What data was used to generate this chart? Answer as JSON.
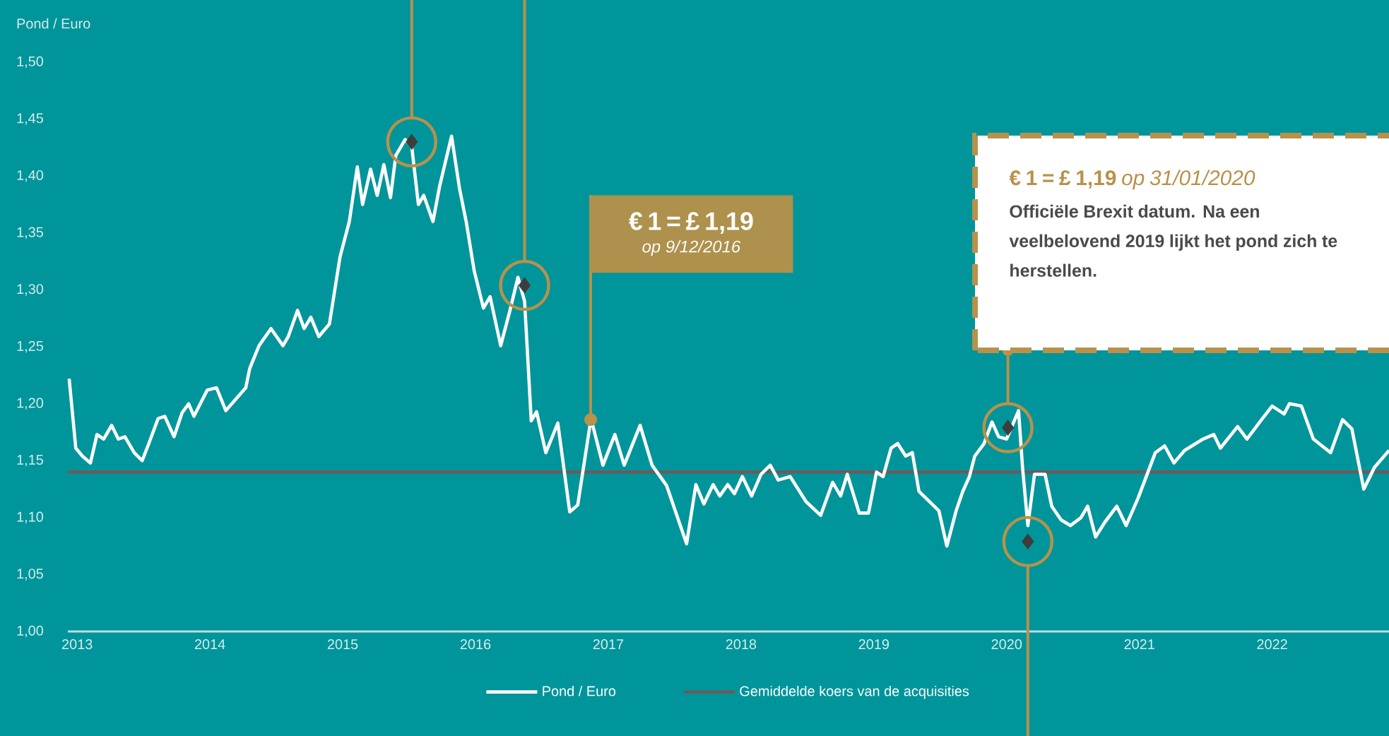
{
  "chart_data": {
    "type": "line",
    "ylabel": "Pond / Euro",
    "xlim": [
      2012.93,
      2022.88
    ],
    "xticks": [
      2013,
      2014,
      2015,
      2016,
      2017,
      2018,
      2019,
      2020,
      2021,
      2022
    ],
    "ylim": [
      1.0,
      1.5
    ],
    "yticks": [
      {
        "value": 1.0,
        "label": "1,00"
      },
      {
        "value": 1.05,
        "label": "1,05"
      },
      {
        "value": 1.1,
        "label": "1,10"
      },
      {
        "value": 1.15,
        "label": "1,15"
      },
      {
        "value": 1.2,
        "label": "1,20"
      },
      {
        "value": 1.25,
        "label": "1,25"
      },
      {
        "value": 1.3,
        "label": "1,30"
      },
      {
        "value": 1.35,
        "label": "1,35"
      },
      {
        "value": 1.4,
        "label": "1,40"
      },
      {
        "value": 1.45,
        "label": "1,45"
      },
      {
        "value": 1.5,
        "label": "1,50"
      }
    ],
    "series": [
      {
        "name": "Pond / Euro",
        "color": "#ffffff",
        "x": [
          2012.94,
          2012.99,
          2013.04,
          2013.1,
          2013.15,
          2013.2,
          2013.26,
          2013.31,
          2013.36,
          2013.43,
          2013.49,
          2013.54,
          2013.61,
          2013.66,
          2013.73,
          2013.79,
          2013.84,
          2013.88,
          2013.98,
          2014.05,
          2014.12,
          2014.27,
          2014.3,
          2014.37,
          2014.46,
          2014.55,
          2014.59,
          2014.66,
          2014.71,
          2014.76,
          2014.82,
          2014.9,
          2014.98,
          2015.05,
          2015.11,
          2015.15,
          2015.21,
          2015.26,
          2015.31,
          2015.36,
          2015.4,
          2015.47,
          2015.52,
          2015.57,
          2015.61,
          2015.68,
          2015.73,
          2015.82,
          2015.88,
          2015.93,
          2015.99,
          2016.06,
          2016.11,
          2016.19,
          2016.26,
          2016.32,
          2016.37,
          2016.42,
          2016.46,
          2016.53,
          2016.62,
          2016.71,
          2016.77,
          2016.87,
          2016.96,
          2017.05,
          2017.12,
          2017.24,
          2017.33,
          2017.44,
          2017.59,
          2017.66,
          2017.72,
          2017.79,
          2017.84,
          2017.9,
          2017.95,
          2018.01,
          2018.08,
          2018.15,
          2018.22,
          2018.28,
          2018.37,
          2018.49,
          2018.6,
          2018.69,
          2018.75,
          2018.8,
          2018.89,
          2018.96,
          2019.02,
          2019.07,
          2019.13,
          2019.18,
          2019.24,
          2019.29,
          2019.34,
          2019.49,
          2019.55,
          2019.62,
          2019.67,
          2019.72,
          2019.76,
          2019.83,
          2019.89,
          2019.94,
          2020.0,
          2020.09,
          2020.12,
          2020.16,
          2020.21,
          2020.29,
          2020.34,
          2020.41,
          2020.48,
          2020.56,
          2020.61,
          2020.67,
          2020.74,
          2020.83,
          2020.9,
          2020.99,
          2021.12,
          2021.19,
          2021.26,
          2021.34,
          2021.48,
          2021.56,
          2021.61,
          2021.74,
          2021.81,
          2021.92,
          2022.0,
          2022.09,
          2022.13,
          2022.22,
          2022.31,
          2022.44,
          2022.53,
          2022.6,
          2022.69,
          2022.77,
          2022.88
        ],
        "values": [
          1.222,
          1.161,
          1.154,
          1.148,
          1.173,
          1.169,
          1.181,
          1.169,
          1.171,
          1.157,
          1.15,
          1.165,
          1.187,
          1.189,
          1.171,
          1.192,
          1.2,
          1.189,
          1.212,
          1.214,
          1.194,
          1.214,
          1.231,
          1.251,
          1.266,
          1.251,
          1.259,
          1.282,
          1.266,
          1.276,
          1.259,
          1.27,
          1.329,
          1.36,
          1.408,
          1.375,
          1.406,
          1.383,
          1.41,
          1.381,
          1.418,
          1.432,
          1.426,
          1.375,
          1.383,
          1.36,
          1.391,
          1.435,
          1.389,
          1.36,
          1.317,
          1.284,
          1.294,
          1.251,
          1.282,
          1.311,
          1.29,
          1.185,
          1.193,
          1.157,
          1.183,
          1.105,
          1.111,
          1.187,
          1.146,
          1.173,
          1.146,
          1.181,
          1.146,
          1.128,
          1.077,
          1.129,
          1.112,
          1.129,
          1.119,
          1.129,
          1.121,
          1.136,
          1.119,
          1.138,
          1.146,
          1.133,
          1.136,
          1.114,
          1.102,
          1.131,
          1.119,
          1.138,
          1.104,
          1.104,
          1.14,
          1.136,
          1.161,
          1.165,
          1.154,
          1.157,
          1.123,
          1.106,
          1.075,
          1.106,
          1.123,
          1.136,
          1.154,
          1.165,
          1.184,
          1.171,
          1.169,
          1.194,
          1.144,
          1.093,
          1.138,
          1.138,
          1.11,
          1.098,
          1.093,
          1.1,
          1.11,
          1.083,
          1.096,
          1.11,
          1.093,
          1.117,
          1.157,
          1.163,
          1.148,
          1.159,
          1.169,
          1.173,
          1.161,
          1.18,
          1.169,
          1.186,
          1.198,
          1.191,
          1.2,
          1.198,
          1.169,
          1.157,
          1.186,
          1.178,
          1.125,
          1.144,
          1.159
        ]
      },
      {
        "type": "scatter",
        "marker": "diamond",
        "color": "#3d3d3d",
        "x": [
          2015.52,
          2016.37,
          2020.01,
          2020.16
        ],
        "values": [
          1.43,
          1.304,
          1.179,
          1.079
        ]
      }
    ],
    "ref_lines": [
      {
        "axis": "y",
        "value": 1.14,
        "label": "Gemiddelde koers van de acquisities",
        "color": "#6e5a5a"
      }
    ],
    "annotations": [
      "€ 1 = £ 1,19",
      "op 9/12/2016",
      "**€ 1 = £ 1,19** *op 31/01/2020*",
      "Officiële Brexit datum. Na een veelbelovend 2019 lijkt het pond zich te herstellen."
    ],
    "legend": "bottom"
  }
}
